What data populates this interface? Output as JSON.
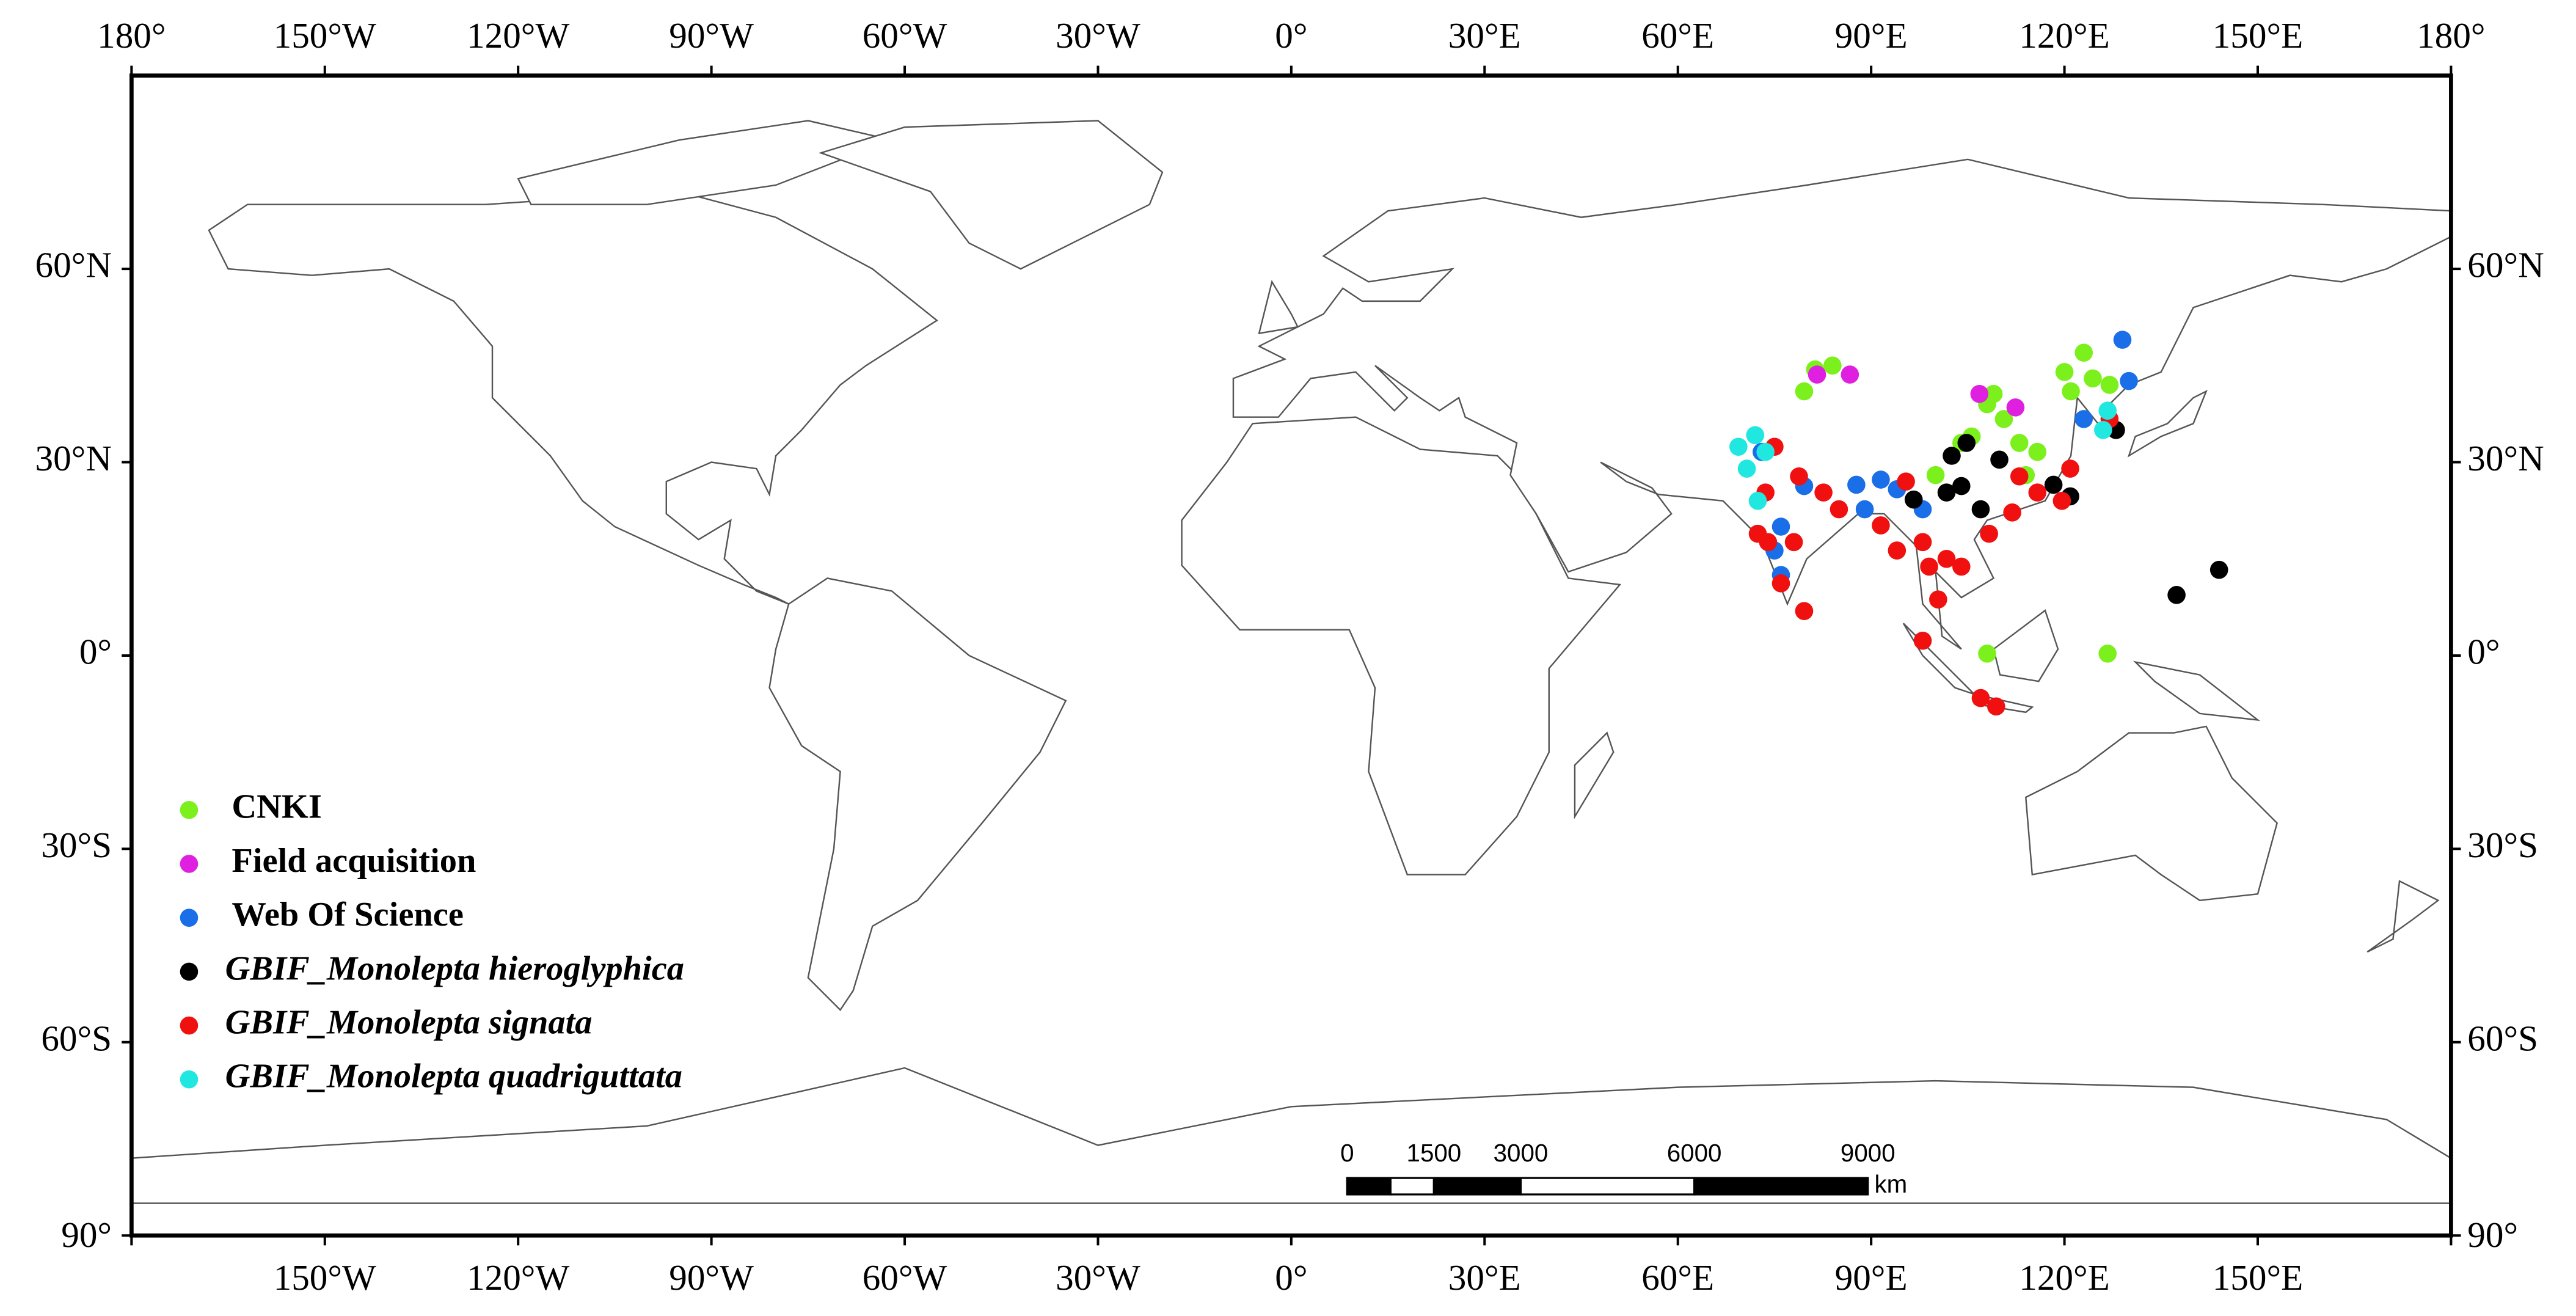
{
  "chart_data": {
    "type": "scatter",
    "xlim": [
      -180,
      180
    ],
    "ylim": [
      -90,
      90
    ],
    "xticks": [
      {
        "value": -180,
        "label": "180°"
      },
      {
        "value": -150,
        "label": "150°W"
      },
      {
        "value": -120,
        "label": "120°W"
      },
      {
        "value": -90,
        "label": "90°W"
      },
      {
        "value": -60,
        "label": "60°W"
      },
      {
        "value": -30,
        "label": "30°W"
      },
      {
        "value": 0,
        "label": "0°"
      },
      {
        "value": 30,
        "label": "30°E"
      },
      {
        "value": 60,
        "label": "60°E"
      },
      {
        "value": 90,
        "label": "90°E"
      },
      {
        "value": 120,
        "label": "120°E"
      },
      {
        "value": 150,
        "label": "150°E"
      },
      {
        "value": 180,
        "label": "180°"
      }
    ],
    "yticks": [
      {
        "value": -90,
        "label": "90°"
      },
      {
        "value": -60,
        "label": "60°S"
      },
      {
        "value": -30,
        "label": "30°S"
      },
      {
        "value": 0,
        "label": "0°"
      },
      {
        "value": 30,
        "label": "30°N"
      },
      {
        "value": 60,
        "label": "60°N"
      }
    ],
    "legend_position": "lower left",
    "series": [
      {
        "name": "CNKI",
        "color": "#7cf01c",
        "x": [
          81.3,
          84,
          79.6,
          123,
          124.4,
          121,
          127,
          120,
          108,
          110.6,
          105.6,
          113,
          115.8,
          109,
          100,
          114,
          108,
          126.7,
          104
        ],
        "y": [
          44.4,
          45,
          41,
          47,
          43,
          41,
          42,
          44,
          39,
          36.7,
          34,
          33,
          31.6,
          40.6,
          28,
          28,
          0.3,
          0.3,
          33
        ]
      },
      {
        "name": "Field acquisition",
        "color": "#e020e0",
        "x": [
          81.6,
          86.7,
          106.8,
          112.4
        ],
        "y": [
          43.6,
          43.6,
          40.6,
          38.5
        ]
      },
      {
        "name": "Web Of Science",
        "color": "#1a6ee8",
        "x": [
          129,
          130,
          73,
          79.6,
          87.7,
          91.5,
          89,
          94,
          98,
          76,
          76,
          75,
          123
        ],
        "y": [
          49,
          42.6,
          31.6,
          26.3,
          26.5,
          27.3,
          22.7,
          25.8,
          22.7,
          20,
          12.5,
          16.3,
          36.7
        ]
      },
      {
        "name": "GBIF_Monolepta hieroglyphica",
        "color": "#000000",
        "font_style": "italic",
        "x": [
          96.6,
          102.5,
          104.8,
          104,
          101.7,
          107,
          109.9,
          118.3,
          120.9,
          128,
          137.4,
          144
        ],
        "y": [
          24.2,
          31,
          33,
          26.3,
          25.3,
          22.7,
          30.4,
          26.5,
          24.7,
          35,
          9.4,
          13.3
        ]
      },
      {
        "name": "GBIF_Monolepta signata",
        "color": "#f01010",
        "font_style": "italic",
        "x": [
          75,
          73.6,
          72.4,
          74,
          78,
          76,
          79.6,
          78.8,
          82.6,
          85,
          91.5,
          94,
          98,
          99,
          101.7,
          104,
          100.4,
          98,
          107,
          109.4,
          113,
          115.8,
          119.6,
          120.9,
          127,
          95.4,
          108.3,
          111.9
        ],
        "y": [
          32.4,
          25.3,
          18.9,
          17.6,
          17.6,
          11.2,
          6.9,
          27.8,
          25.3,
          22.7,
          20.2,
          16.3,
          17.6,
          13.8,
          15,
          13.8,
          8.7,
          2.3,
          -6.6,
          -7.9,
          27.8,
          25.3,
          24,
          29,
          36.7,
          27,
          18.9,
          22.2
        ]
      },
      {
        "name": "GBIF_Monolepta quadriguttata",
        "color": "#20e8e0",
        "font_style": "italic",
        "x": [
          69.4,
          72,
          70.7,
          72.4,
          73.6,
          126.7,
          126
        ],
        "y": [
          32.4,
          34.2,
          29,
          24,
          31.6,
          38,
          35
        ]
      }
    ],
    "scale_bar": {
      "ticks": [
        0,
        1500,
        3000,
        6000,
        9000
      ],
      "unit": "km"
    }
  }
}
